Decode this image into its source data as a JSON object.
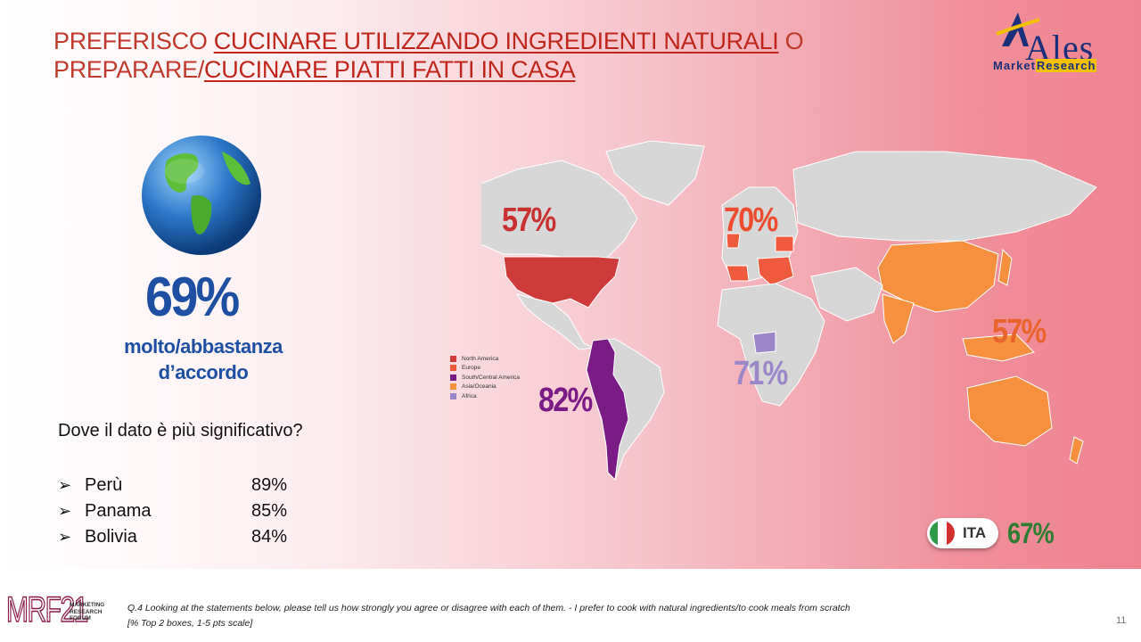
{
  "title": {
    "part1": "PREFERISCO ",
    "part2": "CUCINARE UTILIZZANDO INGREDIENTI NATURALI",
    "part3": " O PREPARARE/",
    "part4": "CUCINARE PIATTI FATTI IN CASA"
  },
  "logo": {
    "word": "Ales",
    "sub1": "Market",
    "sub2": "Research"
  },
  "global": {
    "pct": "69%",
    "line1": "molto/abbastanza",
    "line2": "d’accordo"
  },
  "question": "Dove il dato è più significativo?",
  "countries": [
    {
      "name": "Perù",
      "value": "89%"
    },
    {
      "name": "Panama",
      "value": "85%"
    },
    {
      "name": "Bolivia",
      "value": "84%"
    }
  ],
  "legend": [
    {
      "label": "North America",
      "color": "#cf3a3a"
    },
    {
      "label": "Europe",
      "color": "#ef5a3c"
    },
    {
      "label": "South/Central America",
      "color": "#7b1b86"
    },
    {
      "label": "Asia/Oceania",
      "color": "#f7913f"
    },
    {
      "label": "Africa",
      "color": "#9b86c9"
    }
  ],
  "regions": {
    "north_america": {
      "pct": "57%",
      "color": "#c93030"
    },
    "europe": {
      "pct": "70%",
      "color": "#ee4c30"
    },
    "latam": {
      "pct": "82%",
      "color": "#7b1b86"
    },
    "africa": {
      "pct": "71%",
      "color": "#9b86c9"
    },
    "asia": {
      "pct": "57%",
      "color": "#e9642a"
    }
  },
  "italy": {
    "label": "ITA",
    "pct": "67%"
  },
  "footer": {
    "brand": "MRF21",
    "brand_sub": [
      "MARKETING",
      "RESEARCH",
      "FORUM"
    ],
    "note1": "Q.4 Looking at the statements  below, please tell us how strongly you agree or disagree with each of them. - I prefer to cook with natural ingredients/to cook meals from scratch",
    "note2": "[% Top 2 boxes, 1-5 pts scale]",
    "page": "11"
  }
}
